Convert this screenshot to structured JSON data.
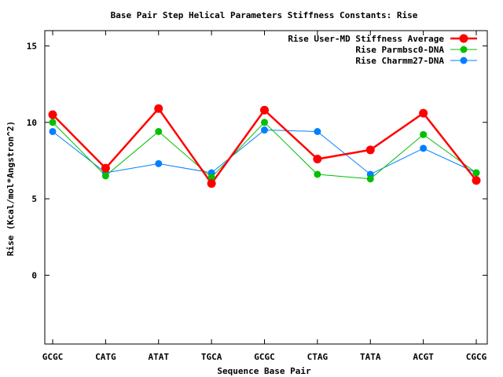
{
  "chart_data": {
    "type": "line",
    "title": "Base Pair Step Helical Parameters Stiffness Constants: Rise",
    "xlabel": "Sequence Base Pair",
    "ylabel": "Rise (Kcal/mol*Angstron^2)",
    "categories": [
      "GCGC",
      "CATG",
      "ATAT",
      "TGCA",
      "GCGC",
      "CTAG",
      "TATA",
      "ACGT",
      "CGCG"
    ],
    "ylim": [
      -4.5,
      16
    ],
    "yticks": [
      0,
      5,
      10,
      15
    ],
    "grid": false,
    "legend_position": "top-right",
    "series": [
      {
        "name": "Rise User-MD Stiffness Average",
        "color": "#ff0000",
        "emphasis": true,
        "values": [
          10.5,
          7.0,
          10.9,
          6.0,
          10.8,
          7.6,
          8.2,
          10.6,
          6.2
        ]
      },
      {
        "name": "Rise Parmbsc0-DNA",
        "color": "#00c000",
        "emphasis": false,
        "values": [
          10.0,
          6.5,
          9.4,
          6.4,
          10.0,
          6.6,
          6.3,
          9.2,
          6.7
        ]
      },
      {
        "name": "Rise Charmm27-DNA",
        "color": "#0080ff",
        "emphasis": false,
        "values": [
          9.4,
          6.7,
          7.3,
          6.7,
          9.5,
          9.4,
          6.6,
          8.3,
          6.7
        ]
      }
    ]
  }
}
